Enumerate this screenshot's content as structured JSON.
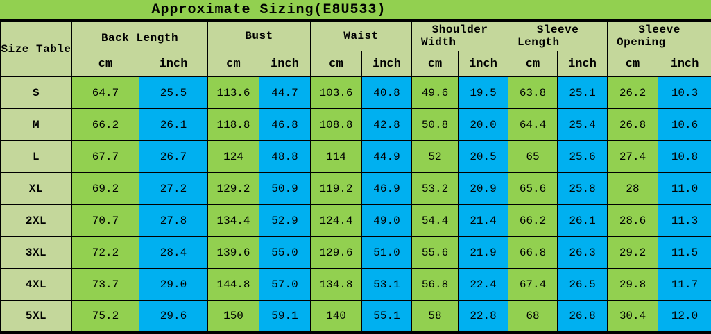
{
  "title": "Approximate Sizing(E8U533)",
  "chart_data": {
    "type": "table",
    "title": "Approximate Sizing(E8U533)",
    "corner_label": "Size Table",
    "column_groups": [
      {
        "label": "Back Length",
        "line1": "Back Length",
        "line2": ""
      },
      {
        "label": "Bust",
        "line1": "Bust",
        "line2": ""
      },
      {
        "label": "Waist",
        "line1": "Waist",
        "line2": ""
      },
      {
        "label": "Shoulder Width",
        "line1": "Shoulder",
        "line2": "Width"
      },
      {
        "label": "Sleeve Length",
        "line1": "Sleeve",
        "line2": "Length"
      },
      {
        "label": "Sleeve Opening",
        "line1": "Sleeve",
        "line2": "Opening"
      }
    ],
    "units": [
      "cm",
      "inch"
    ],
    "rows": [
      {
        "size": "S",
        "values": [
          "64.7",
          "25.5",
          "113.6",
          "44.7",
          "103.6",
          "40.8",
          "49.6",
          "19.5",
          "63.8",
          "25.1",
          "26.2",
          "10.3"
        ]
      },
      {
        "size": "M",
        "values": [
          "66.2",
          "26.1",
          "118.8",
          "46.8",
          "108.8",
          "42.8",
          "50.8",
          "20.0",
          "64.4",
          "25.4",
          "26.8",
          "10.6"
        ]
      },
      {
        "size": "L",
        "values": [
          "67.7",
          "26.7",
          "124",
          "48.8",
          "114",
          "44.9",
          "52",
          "20.5",
          "65",
          "25.6",
          "27.4",
          "10.8"
        ]
      },
      {
        "size": "XL",
        "values": [
          "69.2",
          "27.2",
          "129.2",
          "50.9",
          "119.2",
          "46.9",
          "53.2",
          "20.9",
          "65.6",
          "25.8",
          "28",
          "11.0"
        ]
      },
      {
        "size": "2XL",
        "values": [
          "70.7",
          "27.8",
          "134.4",
          "52.9",
          "124.4",
          "49.0",
          "54.4",
          "21.4",
          "66.2",
          "26.1",
          "28.6",
          "11.3"
        ]
      },
      {
        "size": "3XL",
        "values": [
          "72.2",
          "28.4",
          "139.6",
          "55.0",
          "129.6",
          "51.0",
          "55.6",
          "21.9",
          "66.8",
          "26.3",
          "29.2",
          "11.5"
        ]
      },
      {
        "size": "4XL",
        "values": [
          "73.7",
          "29.0",
          "144.8",
          "57.0",
          "134.8",
          "53.1",
          "56.8",
          "22.4",
          "67.4",
          "26.5",
          "29.8",
          "11.7"
        ]
      },
      {
        "size": "5XL",
        "values": [
          "75.2",
          "29.6",
          "150",
          "59.1",
          "140",
          "55.1",
          "58",
          "22.8",
          "68",
          "26.8",
          "30.4",
          "12.0"
        ]
      }
    ]
  },
  "colors": {
    "title_green": "#92D050",
    "cell_green": "#92D050",
    "cell_blue": "#00B0F0",
    "header_pale_green": "#C4D79B",
    "grid_border": "#000000"
  }
}
